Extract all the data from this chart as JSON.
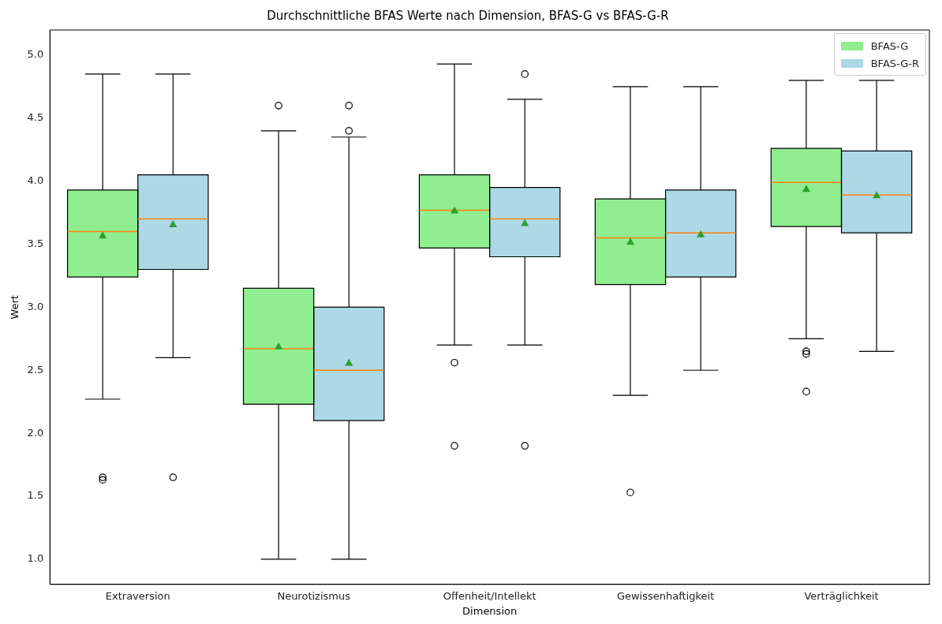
{
  "chart_data": {
    "type": "box",
    "title": "Durchschnittliche BFAS Werte nach Dimension, BFAS-G vs BFAS-G-R",
    "xlabel": "Dimension",
    "ylabel": "Wert",
    "categories": [
      "Extraversion",
      "Neurotizismus",
      "Offenheit/Intellekt",
      "Gewissenhaftigkeit",
      "Verträglichkeit"
    ],
    "series": [
      {
        "name": "BFAS-G",
        "color": "#90ee90",
        "boxes": [
          {
            "low": 2.27,
            "q1": 3.24,
            "median": 3.6,
            "q3": 3.93,
            "high": 4.85,
            "mean": 3.57,
            "outliers": [
              1.65,
              1.63
            ]
          },
          {
            "low": 1.0,
            "q1": 2.23,
            "median": 2.67,
            "q3": 3.15,
            "high": 4.4,
            "mean": 2.69,
            "outliers": [
              4.6
            ]
          },
          {
            "low": 2.7,
            "q1": 3.47,
            "median": 3.77,
            "q3": 4.05,
            "high": 4.93,
            "mean": 3.77,
            "outliers": [
              2.56,
              1.9
            ]
          },
          {
            "low": 2.3,
            "q1": 3.18,
            "median": 3.55,
            "q3": 3.86,
            "high": 4.75,
            "mean": 3.52,
            "outliers": [
              1.53
            ]
          },
          {
            "low": 2.75,
            "q1": 3.64,
            "median": 3.99,
            "q3": 4.26,
            "high": 4.8,
            "mean": 3.94,
            "outliers": [
              2.65,
              2.63,
              2.33
            ]
          }
        ]
      },
      {
        "name": "BFAS-G-R",
        "color": "#add8e6",
        "boxes": [
          {
            "low": 2.6,
            "q1": 3.3,
            "median": 3.7,
            "q3": 4.05,
            "high": 4.85,
            "mean": 3.66,
            "outliers": [
              1.65
            ]
          },
          {
            "low": 1.0,
            "q1": 2.1,
            "median": 2.5,
            "q3": 3.0,
            "high": 4.35,
            "mean": 2.56,
            "outliers": [
              4.6,
              4.4
            ]
          },
          {
            "low": 2.7,
            "q1": 3.4,
            "median": 3.7,
            "q3": 3.95,
            "high": 4.65,
            "mean": 3.67,
            "outliers": [
              4.85,
              1.9
            ]
          },
          {
            "low": 2.5,
            "q1": 3.24,
            "median": 3.59,
            "q3": 3.93,
            "high": 4.75,
            "mean": 3.58
          },
          {
            "low": 2.65,
            "q1": 3.59,
            "median": 3.89,
            "q3": 4.24,
            "high": 4.8,
            "mean": 3.89
          }
        ]
      }
    ],
    "ylim": [
      0.8,
      5.2
    ],
    "yticks": [
      {
        "value": 1,
        "label": "1.0"
      },
      1.5,
      {
        "value": 2,
        "label": "2.0"
      },
      2.5,
      {
        "value": 3,
        "label": "3.0"
      },
      3.5,
      {
        "value": 4,
        "label": "4.0"
      },
      4.5,
      {
        "value": 5,
        "label": "5.0"
      }
    ],
    "grid": false,
    "legend": "top right"
  }
}
